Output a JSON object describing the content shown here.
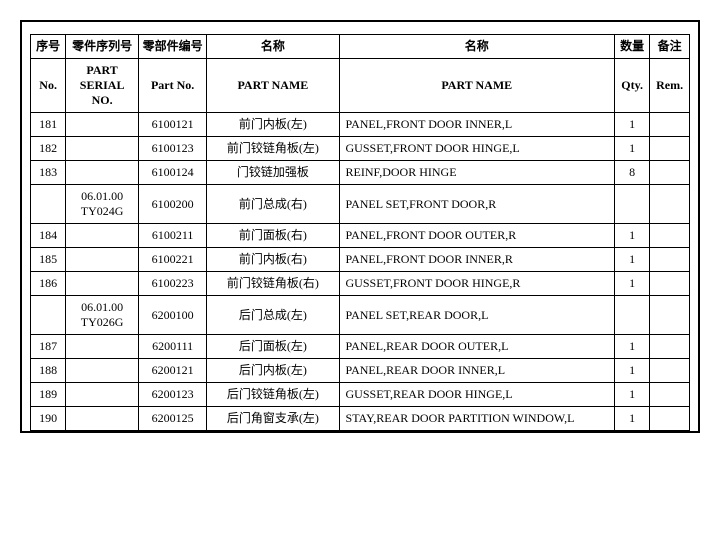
{
  "headers": {
    "row1": {
      "c1": "序号",
      "c2": "零件序列号",
      "c3": "零部件编号",
      "c4": "名称",
      "c5": "名称",
      "c6": "数量",
      "c7": "备注"
    },
    "row2": {
      "c1": "No.",
      "c2": "PART SERIAL NO.",
      "c3": "Part No.",
      "c4": "PART NAME",
      "c5": "PART NAME",
      "c6": "Qty.",
      "c7": "Rem."
    }
  },
  "rows": [
    {
      "no": "181",
      "serial": "",
      "part": "6100121",
      "name_cn": "前门内板(左)",
      "name_en": "PANEL,FRONT DOOR INNER,L",
      "qty": "1",
      "rem": ""
    },
    {
      "no": "182",
      "serial": "",
      "part": "6100123",
      "name_cn": "前门铰链角板(左)",
      "name_en": "GUSSET,FRONT DOOR HINGE,L",
      "qty": "1",
      "rem": ""
    },
    {
      "no": "183",
      "serial": "",
      "part": "6100124",
      "name_cn": "门铰链加强板",
      "name_en": "REINF,DOOR HINGE",
      "qty": "8",
      "rem": ""
    },
    {
      "no": "",
      "serial": "06.01.00 TY024G",
      "part": "6100200",
      "name_cn": "前门总成(右)",
      "name_en": "PANEL SET,FRONT DOOR,R",
      "qty": "",
      "rem": ""
    },
    {
      "no": "184",
      "serial": "",
      "part": "6100211",
      "name_cn": "前门面板(右)",
      "name_en": "PANEL,FRONT DOOR OUTER,R",
      "qty": "1",
      "rem": ""
    },
    {
      "no": "185",
      "serial": "",
      "part": "6100221",
      "name_cn": "前门内板(右)",
      "name_en": "PANEL,FRONT DOOR INNER,R",
      "qty": "1",
      "rem": ""
    },
    {
      "no": "186",
      "serial": "",
      "part": "6100223",
      "name_cn": "前门铰链角板(右)",
      "name_en": "GUSSET,FRONT DOOR HINGE,R",
      "qty": "1",
      "rem": ""
    },
    {
      "no": "",
      "serial": "06.01.00 TY026G",
      "part": "6200100",
      "name_cn": "后门总成(左)",
      "name_en": "PANEL SET,REAR DOOR,L",
      "qty": "",
      "rem": ""
    },
    {
      "no": "187",
      "serial": "",
      "part": "6200111",
      "name_cn": "后门面板(左)",
      "name_en": "PANEL,REAR DOOR OUTER,L",
      "qty": "1",
      "rem": ""
    },
    {
      "no": "188",
      "serial": "",
      "part": "6200121",
      "name_cn": "后门内板(左)",
      "name_en": "PANEL,REAR DOOR INNER,L",
      "qty": "1",
      "rem": ""
    },
    {
      "no": "189",
      "serial": "",
      "part": "6200123",
      "name_cn": "后门铰链角板(左)",
      "name_en": "GUSSET,REAR DOOR HINGE,L",
      "qty": "1",
      "rem": ""
    },
    {
      "no": "190",
      "serial": "",
      "part": "6200125",
      "name_cn": "后门角窗支承(左)",
      "name_en": "STAY,REAR DOOR PARTITION WINDOW,L",
      "qty": "1",
      "rem": ""
    }
  ]
}
